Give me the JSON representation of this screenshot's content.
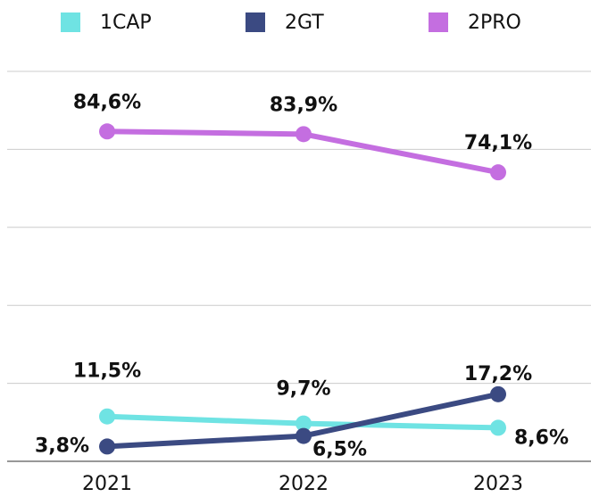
{
  "chart_data": {
    "type": "line",
    "categories": [
      "2021",
      "2022",
      "2023"
    ],
    "series": [
      {
        "name": "1CAP",
        "color": "#6fe3e3",
        "values": [
          11.5,
          9.7,
          8.6
        ],
        "value_labels": [
          "11,5%",
          "9,7%",
          "8,6%"
        ]
      },
      {
        "name": "2GT",
        "color": "#3b4a82",
        "values": [
          3.8,
          6.5,
          17.2
        ],
        "value_labels": [
          "3,8%",
          "6,5%",
          "17,2%"
        ]
      },
      {
        "name": "2PRO",
        "color": "#c46ee0",
        "values": [
          84.6,
          83.9,
          74.1
        ],
        "value_labels": [
          "84,6%",
          "83,9%",
          "74,1%"
        ]
      }
    ],
    "ylim": [
      0,
      100
    ],
    "yticks": [
      0,
      20,
      40,
      60,
      80,
      100
    ],
    "grid": true,
    "legend": "top"
  }
}
